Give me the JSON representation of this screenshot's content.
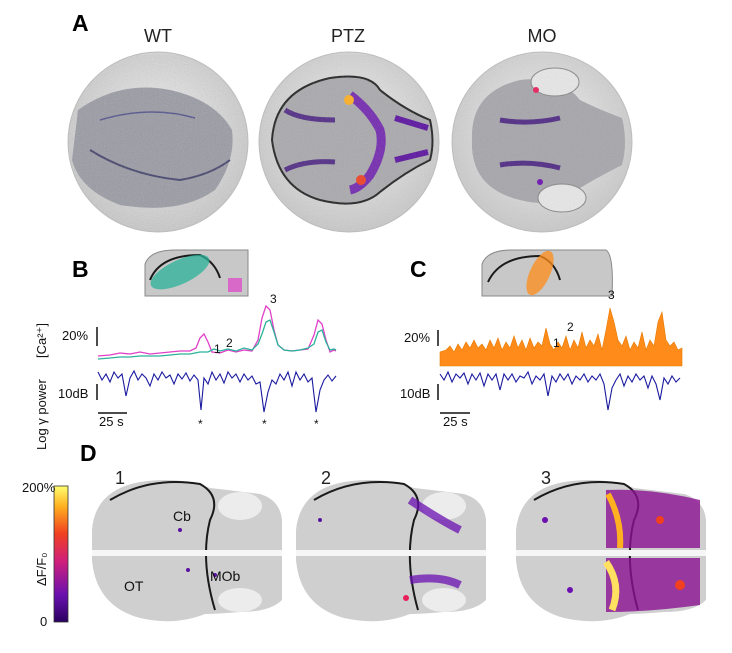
{
  "panels": {
    "A": {
      "letter": "A",
      "conditions": [
        "WT",
        "PTZ",
        "MO"
      ]
    },
    "B": {
      "letter": "B",
      "amplitude_scale": "20%",
      "power_scale": "10dB",
      "time_scale": "25 s",
      "peak_labels": [
        "1",
        "2",
        "3"
      ],
      "spike_marker": "*",
      "calcium_axis_label": "[Ca²⁺]",
      "power_axis_label": "Log γ power",
      "trace_colors": {
        "roi1": "#2bb39a",
        "roi2": "#e040c8",
        "lfp": "#1a1aa0"
      }
    },
    "C": {
      "letter": "C",
      "amplitude_scale": "20%",
      "power_scale": "10dB",
      "time_scale": "25 s",
      "peak_labels": [
        "1",
        "2",
        "3"
      ],
      "trace_colors": {
        "fill": "#ff8c1a",
        "lfp": "#1a1aa0"
      }
    },
    "D": {
      "letter": "D",
      "frames": [
        "1",
        "2",
        "3"
      ],
      "colorbar": {
        "max": "200%",
        "min": "0",
        "label": "ΔF/F₀"
      },
      "regions": [
        "Cb",
        "OT",
        "MOb"
      ]
    }
  },
  "colors": {
    "heat_low": "#3a0a7a",
    "heat_mid": "#e8205a",
    "heat_high": "#fff080",
    "tissue": "#8a8a8a"
  }
}
